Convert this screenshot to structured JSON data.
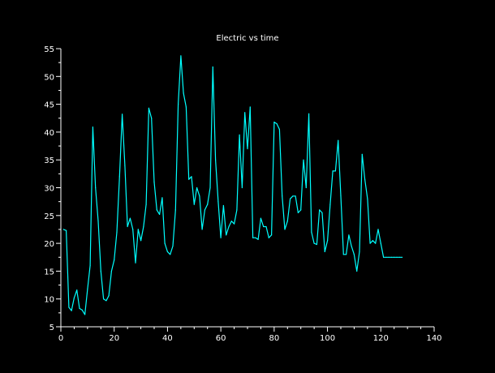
{
  "chart_data": {
    "type": "line",
    "title": "Electric vs time",
    "xlabel": "",
    "ylabel": "",
    "xlim": [
      0,
      140
    ],
    "ylim": [
      5,
      55
    ],
    "xticks": [
      0,
      20,
      40,
      60,
      80,
      100,
      120,
      140
    ],
    "yticks": [
      5,
      10,
      15,
      20,
      25,
      30,
      35,
      40,
      45,
      50,
      55
    ],
    "grid": false,
    "background": "#000000",
    "axis_color": "#ffffff",
    "series": [
      {
        "color": "#00ffff",
        "x": [
          1,
          2,
          3,
          4,
          5,
          6,
          7,
          8,
          9,
          10,
          11,
          12,
          13,
          14,
          15,
          16,
          17,
          18,
          19,
          20,
          21,
          22,
          23,
          24,
          25,
          26,
          27,
          28,
          29,
          30,
          31,
          32,
          33,
          34,
          35,
          36,
          37,
          38,
          39,
          40,
          41,
          42,
          43,
          44,
          45,
          46,
          47,
          48,
          49,
          50,
          51,
          52,
          53,
          54,
          55,
          56,
          57,
          58,
          59,
          60,
          61,
          62,
          63,
          64,
          65,
          66,
          67,
          68,
          69,
          70,
          71,
          72,
          73,
          74,
          75,
          76,
          77,
          78,
          79,
          80,
          81,
          82,
          83,
          84,
          85,
          86,
          87,
          88,
          89,
          90,
          91,
          92,
          93,
          94,
          95,
          96,
          97,
          98,
          99,
          100,
          101,
          102,
          103,
          104,
          105,
          106,
          107,
          108,
          109,
          110,
          111,
          112,
          113,
          114,
          115,
          116,
          117,
          118,
          119,
          120,
          121,
          122,
          123,
          124,
          125,
          126,
          127,
          128
        ],
        "y": [
          22.5,
          22.3,
          8.5,
          7.9,
          10.2,
          11.6,
          8.3,
          8.0,
          7.2,
          11.8,
          16.0,
          40.9,
          30.0,
          24.0,
          15.0,
          10.0,
          9.7,
          10.6,
          15.0,
          17.0,
          22.0,
          32.0,
          43.2,
          34.0,
          23.0,
          24.5,
          22.5,
          16.5,
          22.5,
          20.5,
          23.0,
          27.0,
          44.3,
          42.5,
          31.0,
          26.0,
          25.2,
          28.2,
          20.0,
          18.5,
          18.0,
          19.5,
          26.0,
          45.0,
          53.7,
          47.0,
          44.5,
          31.5,
          32.0,
          27.0,
          30.0,
          28.5,
          22.5,
          26.0,
          27.0,
          30.0,
          51.7,
          35.0,
          27.5,
          21.0,
          26.8,
          21.5,
          23.0,
          24.0,
          23.5,
          26.0,
          39.5,
          30.0,
          43.5,
          37.0,
          44.5,
          21.0,
          21.0,
          20.7,
          24.5,
          23.0,
          23.0,
          21.0,
          21.5,
          41.8,
          41.5,
          40.5,
          28.5,
          22.5,
          24.0,
          28.0,
          28.5,
          28.5,
          25.5,
          26.0,
          35.0,
          30.0,
          43.3,
          22.0,
          20.0,
          19.8,
          26.0,
          25.5,
          18.5,
          20.5,
          27.0,
          33.0,
          33.0,
          38.5,
          28.5,
          18.0,
          18.0,
          21.5,
          19.5,
          18.0,
          15.0,
          18.5,
          36.0,
          31.5,
          28.0,
          20.0,
          20.5,
          20.0,
          22.5,
          20.0,
          17.5,
          17.5,
          17.5,
          17.5,
          17.5,
          17.5,
          17.5,
          17.5
        ]
      }
    ]
  }
}
